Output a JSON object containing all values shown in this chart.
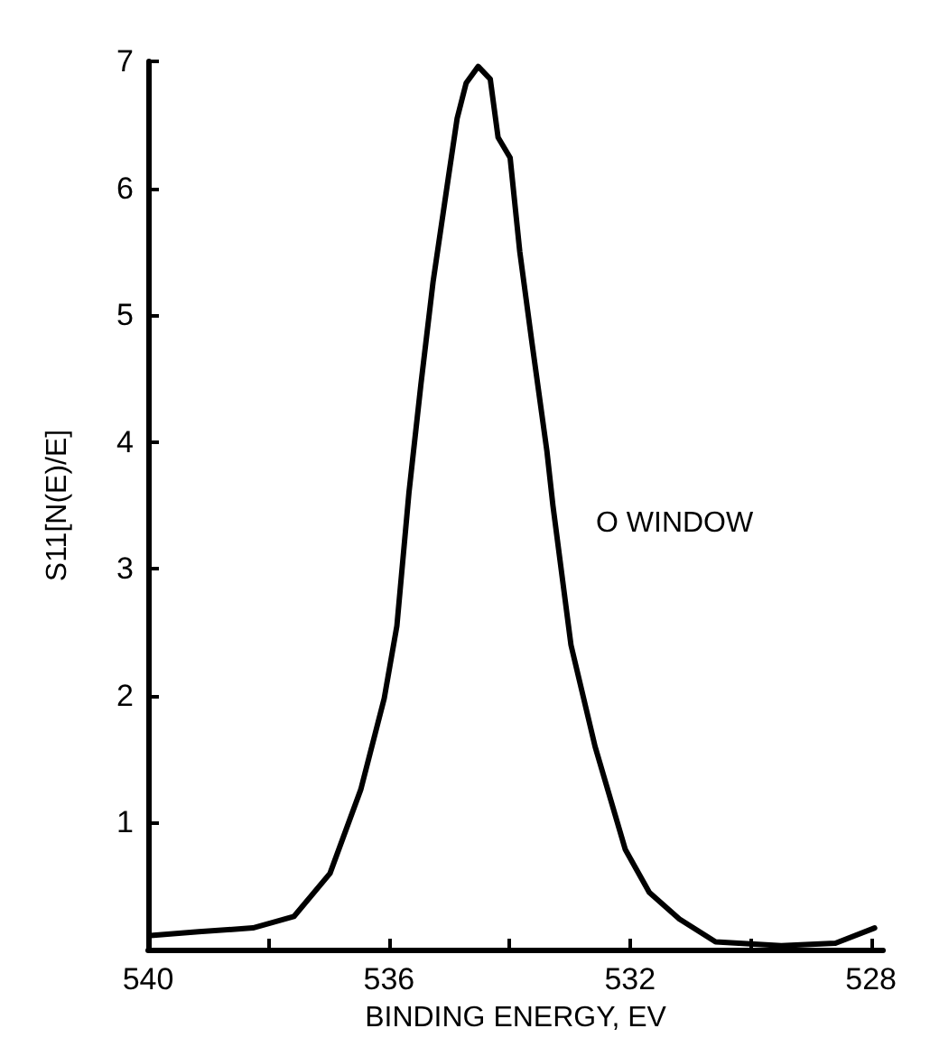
{
  "chart_data": {
    "type": "line",
    "xlabel": "BINDING ENERGY, EV",
    "ylabel": "S11[N(E)/E]",
    "annotations": [
      "O WINDOW"
    ],
    "xlim": [
      540,
      527.8
    ],
    "xticks": [
      540,
      {
        "value": 538,
        "label": null
      },
      536,
      {
        "value": 534,
        "label": null
      },
      532,
      {
        "value": 530,
        "label": null
      },
      528
    ],
    "ylim": [
      0,
      7
    ],
    "yticks": [
      1,
      2,
      3,
      4,
      5,
      6,
      7
    ],
    "grid": false,
    "marker": "none",
    "line_style": "solid",
    "series": [
      {
        "color": "#000000",
        "x": [
          539.96,
          539.16,
          538.26,
          537.58,
          536.98,
          536.47,
          536.08,
          535.87,
          535.67,
          535.47,
          535.27,
          535.02,
          534.87,
          534.72,
          534.52,
          534.32,
          534.19,
          533.99,
          533.83,
          533.63,
          533.38,
          533.28,
          532.98,
          532.58,
          532.08,
          531.68,
          531.18,
          530.58,
          529.49,
          528.59,
          527.94
        ],
        "values": [
          0.11,
          0.14,
          0.17,
          0.26,
          0.6,
          1.26,
          1.98,
          2.55,
          3.6,
          4.46,
          5.26,
          6.07,
          6.55,
          6.83,
          6.96,
          6.86,
          6.4,
          6.24,
          5.5,
          4.79,
          3.93,
          3.5,
          2.4,
          1.6,
          0.79,
          0.45,
          0.24,
          0.06,
          0.03,
          0.05,
          0.17
        ]
      }
    ]
  }
}
